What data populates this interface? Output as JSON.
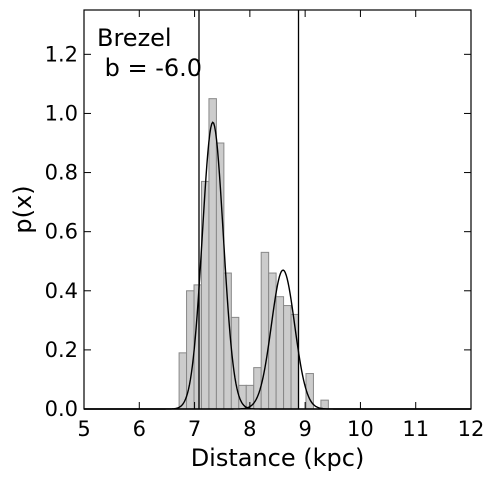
{
  "chart_data": {
    "type": "histogram",
    "annotation": {
      "line1": "Brezel",
      "line2": " b = -6.0"
    },
    "xlabel": "Distance (kpc)",
    "ylabel": "p(x)",
    "xlim": [
      5,
      12
    ],
    "ylim": [
      0,
      1.35
    ],
    "x_ticks": [
      5,
      6,
      7,
      8,
      9,
      10,
      11,
      12
    ],
    "x_tick_labels": [
      "5",
      "6",
      "7",
      "8",
      "9",
      "10",
      "11",
      "12"
    ],
    "y_ticks": [
      0.0,
      0.2,
      0.4,
      0.6,
      0.8,
      1.0,
      1.2
    ],
    "y_tick_labels": [
      "0.0",
      "0.2",
      "0.4",
      "0.6",
      "0.8",
      "1.0",
      "1.2"
    ],
    "histogram": {
      "bin_width": 0.135,
      "bin_starts": [
        6.72,
        6.855,
        6.99,
        7.125,
        7.26,
        7.395,
        7.53,
        7.665,
        7.8,
        7.935,
        8.07,
        8.205,
        8.34,
        8.475,
        8.61,
        8.745,
        8.88,
        9.015,
        9.15,
        9.285,
        9.42
      ],
      "heights": [
        0.19,
        0.4,
        0.42,
        0.77,
        1.05,
        0.9,
        0.46,
        0.31,
        0.08,
        0.08,
        0.14,
        0.53,
        0.46,
        0.38,
        0.35,
        0.32,
        0.0,
        0.12,
        0.0,
        0.03,
        0.0
      ],
      "fill": "#cccccc",
      "edge": "#888888"
    },
    "gaussians": [
      {
        "mean": 7.33,
        "sigma": 0.19,
        "amplitude": 0.97
      },
      {
        "mean": 8.6,
        "sigma": 0.21,
        "amplitude": 0.47
      }
    ],
    "vertical_lines": [
      7.08,
      8.88
    ],
    "line_color": "#000000",
    "grid": false
  }
}
